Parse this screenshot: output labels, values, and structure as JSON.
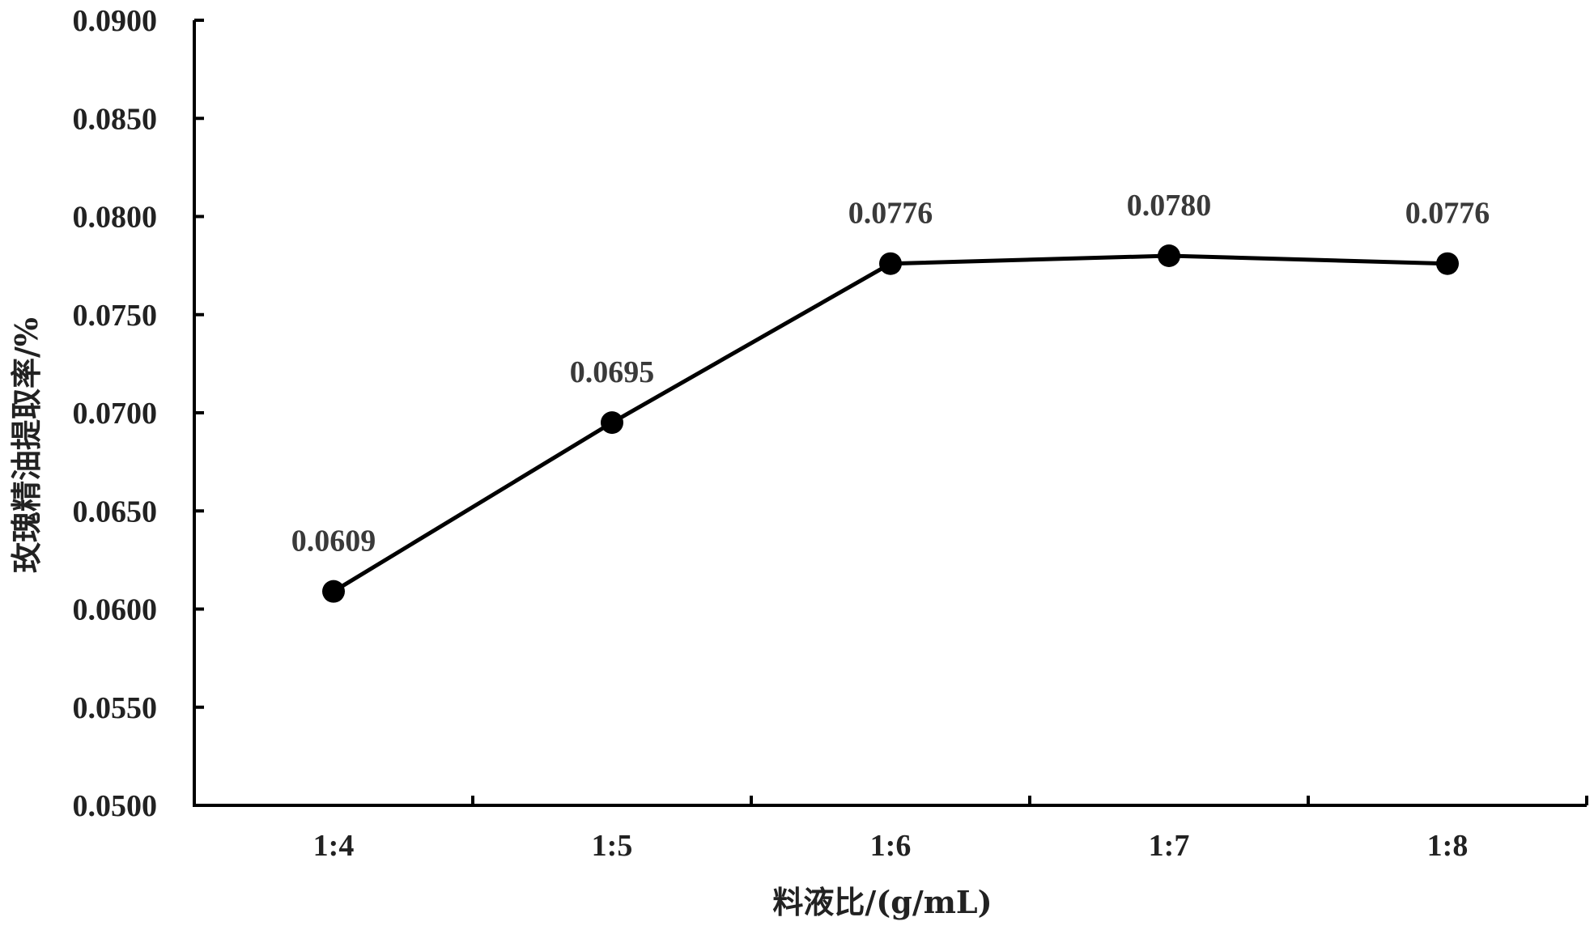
{
  "chart_data": {
    "type": "line",
    "title": "",
    "xlabel": "料液比/(g/mL)",
    "ylabel": "玫瑰精油提取率/%",
    "categories": [
      "1:4",
      "1:5",
      "1:6",
      "1:7",
      "1:8"
    ],
    "series": [
      {
        "values": [
          0.0609,
          0.0695,
          0.0776,
          0.078,
          0.0776
        ],
        "data_labels": [
          "0.0609",
          "0.0695",
          "0.0776",
          "0.0780",
          "0.0776"
        ]
      }
    ],
    "ylim": [
      0.05,
      0.09
    ],
    "y_ticks": [
      0.05,
      0.055,
      0.06,
      0.065,
      0.07,
      0.075,
      0.08,
      0.085,
      0.09
    ],
    "y_tick_labels": [
      "0.0500",
      "0.0550",
      "0.0600",
      "0.0650",
      "0.0700",
      "0.0750",
      "0.0800",
      "0.0850",
      "0.0900"
    ],
    "grid": false,
    "legend": "none",
    "line_color": "#000000",
    "marker": "filled-circle"
  }
}
